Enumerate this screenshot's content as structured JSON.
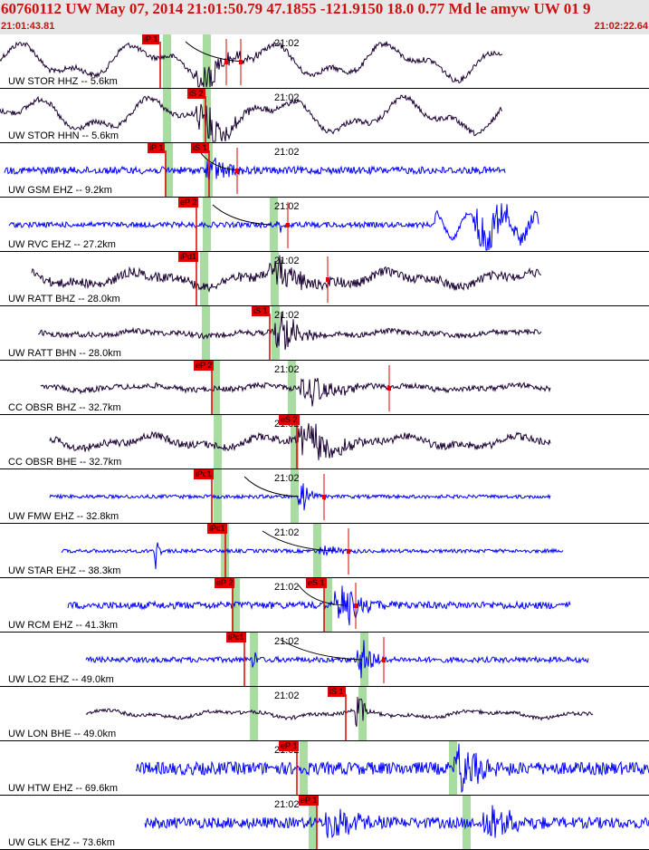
{
  "header": {
    "title": "60760112 UW May 07, 2014 21:01:50.79   47.1855 -121.9150 18.0 0.77 Md le amyw UW 01   9",
    "time_start": "21:01:43.81",
    "time_end": "21:02:22.64"
  },
  "minute_label": "21:02",
  "colors": {
    "trace_blue": "#0000ff",
    "trace_dark": "#1a0033",
    "pick_red": "#e00000",
    "window_green": "#a8dca0",
    "header_bg": "#e6e6e6",
    "header_text": "#cc1111"
  },
  "traces": [
    {
      "label": "UW STOR HHZ -- 5.6km",
      "color": "dark",
      "picks": [
        "iP 1"
      ]
    },
    {
      "label": "UW STOR HHN -- 5.6km",
      "color": "dark",
      "picks": [
        "iS 2"
      ]
    },
    {
      "label": "UW GSM EHZ -- 9.2km",
      "color": "blue",
      "picks": [
        "iP 1",
        "iS 1"
      ]
    },
    {
      "label": "UW RVC EHZ -- 27.2km",
      "color": "blue",
      "picks": [
        "eP 2"
      ]
    },
    {
      "label": "UW RATT BHZ -- 28.0km",
      "color": "dark",
      "picks": [
        "iPd1"
      ]
    },
    {
      "label": "UW RATT BHN -- 28.0km",
      "color": "dark",
      "picks": [
        "iS 1"
      ]
    },
    {
      "label": "CC OBSR BHZ -- 32.7km",
      "color": "dark",
      "picks": [
        "eP 2"
      ]
    },
    {
      "label": "CC OBSR BHE -- 32.7km",
      "color": "dark",
      "picks": [
        "eS 2"
      ]
    },
    {
      "label": "UW FMW EHZ -- 32.8km",
      "color": "blue",
      "picks": [
        "iPc1"
      ]
    },
    {
      "label": "UW STAR EHZ -- 38.3km",
      "color": "blue",
      "picks": [
        "iPc1"
      ]
    },
    {
      "label": "UW RCM EHZ -- 41.3km",
      "color": "blue",
      "picks": [
        "eP 2",
        "eS 1"
      ]
    },
    {
      "label": "UW LO2 EHZ -- 49.0km",
      "color": "blue",
      "picks": [
        "iPc1"
      ]
    },
    {
      "label": "UW LON BHE -- 49.0km",
      "color": "dark",
      "picks": [
        "iS 1"
      ]
    },
    {
      "label": "UW HTW EHZ -- 69.6km",
      "color": "blue",
      "picks": [
        "eP 1"
      ]
    },
    {
      "label": "UW GLK EHZ -- 73.6km",
      "color": "blue",
      "picks": [
        "eP 1"
      ]
    }
  ]
}
